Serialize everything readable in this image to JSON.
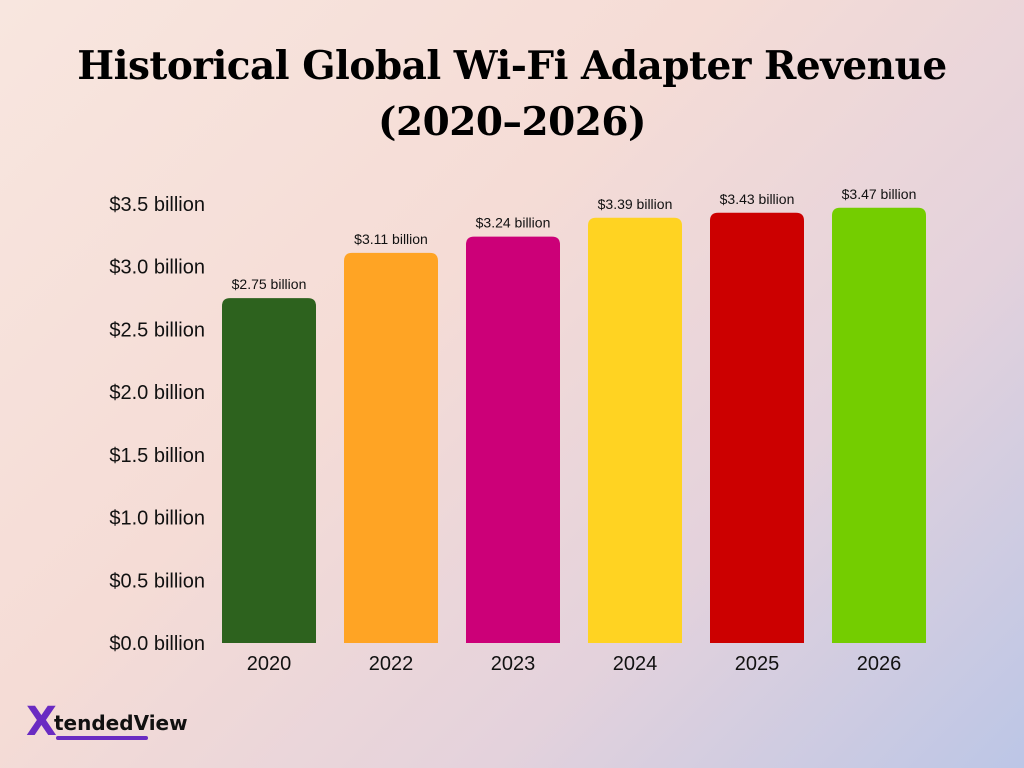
{
  "chart_data": {
    "type": "bar",
    "title": "Historical Global Wi-Fi Adapter Revenue (2020–2026)",
    "categories": [
      "2020",
      "2022",
      "2023",
      "2024",
      "2025",
      "2026"
    ],
    "values": [
      2.75,
      3.11,
      3.24,
      3.39,
      3.43,
      3.47
    ],
    "data_labels": [
      "$2.75 billion",
      "$3.11 billion",
      "$3.24 billion",
      "$3.39 billion",
      "$3.43 billion",
      "$3.47 billion"
    ],
    "colors": [
      "#2d621e",
      "#ffa424",
      "#cc0078",
      "#ffd322",
      "#cc0000",
      "#74cd00"
    ],
    "yticks": [
      0,
      0.5,
      1.0,
      1.5,
      2.0,
      2.5,
      3.0,
      3.5
    ],
    "ytick_labels": [
      "$0.0 billion",
      "$0.5 billion",
      "$1.0 billion",
      "$1.5 billion",
      "$2.0 billion",
      "$2.5 billion",
      "$3.0 billion",
      "$3.5 billion"
    ],
    "ylim": [
      0,
      3.5
    ],
    "xlabel": "",
    "ylabel": "",
    "grid": false,
    "legend": "none"
  },
  "logo": {
    "mark": "X",
    "text_main": "tended",
    "text_end": "View"
  }
}
